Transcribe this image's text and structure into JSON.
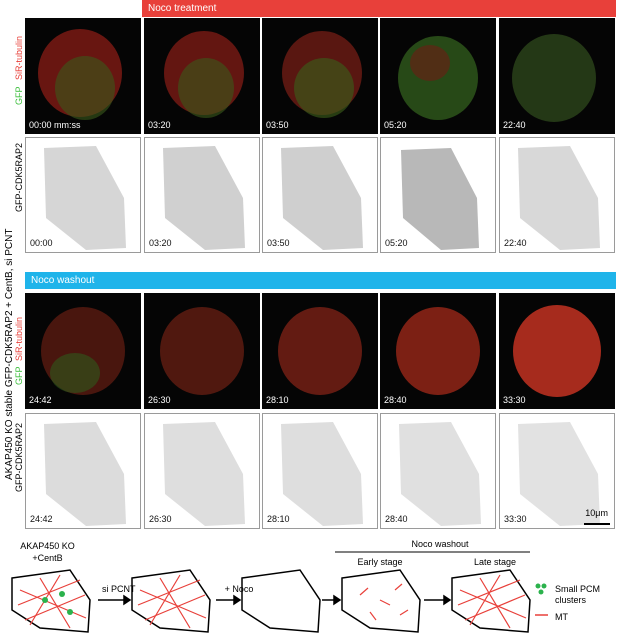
{
  "top_bar": {
    "label": "Noco treatment",
    "color": "#e8403a"
  },
  "wash_bar": {
    "label": "Noco washout",
    "color": "#1fb4ea"
  },
  "side_label": "AKAP450 KO stable GFP-CDK5RAP2 + CentB, si PCNT",
  "channels": {
    "tubulin": "SiR-tubulin",
    "gfp": "GFP",
    "cdk": "GFP-CDK5RAP2",
    "tubulin_color": "#e8403a",
    "gfp_color": "#3cbf3c"
  },
  "rows": {
    "treat_timestamps": [
      "00:00 mm:ss",
      "03:20",
      "03:50",
      "05:20",
      "22:40"
    ],
    "treat_gray_timestamps": [
      "00:00",
      "03:20",
      "03:50",
      "05:20",
      "22:40"
    ],
    "wash_timestamps": [
      "24:42",
      "26:30",
      "28:10",
      "28:40",
      "33:30"
    ]
  },
  "scale_bar": "10μm",
  "diagram": {
    "cond1": "AKAP450 KO",
    "cond2": "+CentB",
    "step1": "si PCNT",
    "step2": "+ Noco",
    "washout": "Noco washout",
    "early": "Early stage",
    "late": "Late stage",
    "legend_pcm": "Small PCM",
    "legend_pcm2": "clusters",
    "legend_mt": "MT",
    "pcm_color": "#2bb24c",
    "mt_color": "#e8403a"
  }
}
